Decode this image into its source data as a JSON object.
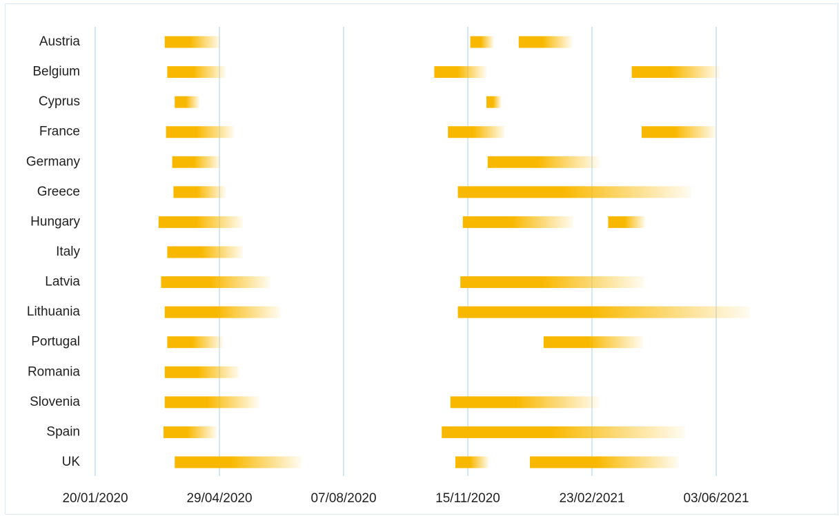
{
  "chart_data": {
    "type": "bar",
    "orientation": "horizontal",
    "subtype": "timeline-range",
    "title": "",
    "xlabel": "",
    "ylabel": "",
    "x_ticks": [
      "20/01/2020",
      "29/04/2020",
      "07/08/2020",
      "15/11/2020",
      "23/02/2021",
      "03/06/2021"
    ],
    "xlim": [
      "2020-01-20",
      "2021-07-27"
    ],
    "grid": "vertical",
    "legend": "none",
    "bar_color": "#F9B800",
    "bar_style": "solid-then-fade-to-white",
    "categories": [
      "Austria",
      "Belgium",
      "Cyprus",
      "France",
      "Germany",
      "Greece",
      "Hungary",
      "Italy",
      "Latvia",
      "Lithuania",
      "Portugal",
      "Romania",
      "Slovenia",
      "Spain",
      "UK"
    ],
    "periods": [
      {
        "country": "Austria",
        "ranges": [
          [
            "2020-03-16",
            "2020-04-30"
          ],
          [
            "2020-11-17",
            "2020-12-06"
          ],
          [
            "2020-12-26",
            "2021-02-07"
          ]
        ]
      },
      {
        "country": "Belgium",
        "ranges": [
          [
            "2020-03-18",
            "2020-05-04"
          ],
          [
            "2020-10-19",
            "2020-11-30"
          ],
          [
            "2021-03-27",
            "2021-06-06"
          ]
        ]
      },
      {
        "country": "Cyprus",
        "ranges": [
          [
            "2020-03-24",
            "2020-04-13"
          ],
          [
            "2020-11-30",
            "2020-12-12"
          ]
        ]
      },
      {
        "country": "France",
        "ranges": [
          [
            "2020-03-17",
            "2020-05-11"
          ],
          [
            "2020-10-30",
            "2020-12-15"
          ],
          [
            "2021-04-04",
            "2021-06-03"
          ]
        ]
      },
      {
        "country": "Germany",
        "ranges": [
          [
            "2020-03-22",
            "2020-04-30"
          ],
          [
            "2020-12-01",
            "2021-03-01"
          ]
        ]
      },
      {
        "country": "Greece",
        "ranges": [
          [
            "2020-03-23",
            "2020-05-04"
          ],
          [
            "2020-11-07",
            "2021-05-14"
          ]
        ]
      },
      {
        "country": "Hungary",
        "ranges": [
          [
            "2020-03-11",
            "2020-05-18"
          ],
          [
            "2020-11-11",
            "2021-02-08"
          ],
          [
            "2021-03-08",
            "2021-04-07"
          ]
        ]
      },
      {
        "country": "Italy",
        "ranges": [
          [
            "2020-03-18",
            "2020-05-18"
          ]
        ]
      },
      {
        "country": "Latvia",
        "ranges": [
          [
            "2020-03-13",
            "2020-06-09"
          ],
          [
            "2020-11-09",
            "2021-04-06"
          ]
        ]
      },
      {
        "country": "Lithuania",
        "ranges": [
          [
            "2020-03-16",
            "2020-06-17"
          ],
          [
            "2020-11-07",
            "2021-06-30"
          ]
        ]
      },
      {
        "country": "Portugal",
        "ranges": [
          [
            "2020-03-18",
            "2020-05-02"
          ],
          [
            "2021-01-15",
            "2021-04-05"
          ]
        ]
      },
      {
        "country": "Romania",
        "ranges": [
          [
            "2020-03-16",
            "2020-05-15"
          ]
        ]
      },
      {
        "country": "Slovenia",
        "ranges": [
          [
            "2020-03-16",
            "2020-05-31"
          ],
          [
            "2020-11-01",
            "2021-03-01"
          ]
        ]
      },
      {
        "country": "Spain",
        "ranges": [
          [
            "2020-03-15",
            "2020-04-27"
          ],
          [
            "2020-10-25",
            "2021-05-09"
          ]
        ]
      },
      {
        "country": "UK",
        "ranges": [
          [
            "2020-03-24",
            "2020-07-04"
          ],
          [
            "2020-11-05",
            "2020-12-02"
          ],
          [
            "2021-01-04",
            "2021-05-04"
          ]
        ]
      }
    ]
  }
}
